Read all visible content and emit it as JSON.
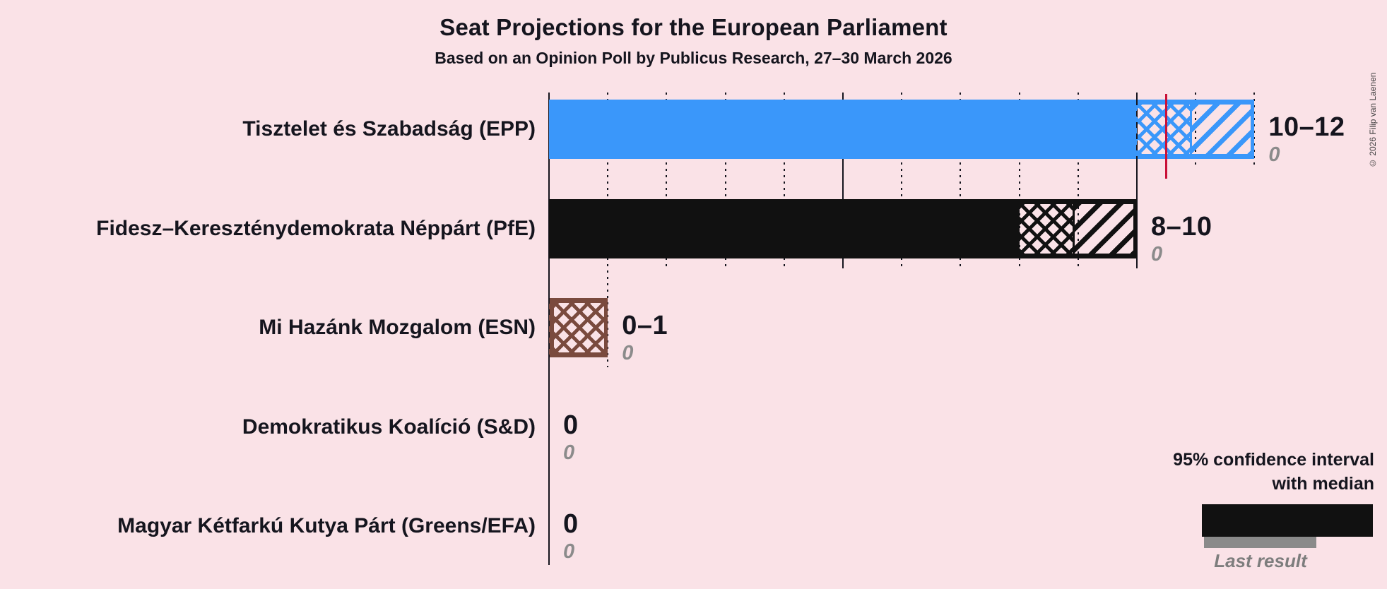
{
  "header": {
    "title": "Seat Projections for the European Parliament",
    "subtitle": "Based on an Opinion Poll by Publicus Research, 27–30 March 2026",
    "copyright": "© 2026 Filip van Laenen"
  },
  "legend": {
    "ci_line1": "95% confidence interval",
    "ci_line2": "with median",
    "last_result": "Last result"
  },
  "colors": {
    "background": "#fae2e7",
    "text": "#15151e",
    "median_line": "#c91038",
    "gray_label": "#8b8b8b",
    "last_result_bar": "#8a8a8a"
  },
  "chart_data": {
    "type": "bar",
    "title": "Seat Projections for the European Parliament",
    "subtitle": "Based on an Opinion Poll by Publicus Research, 27–30 March 2026",
    "unit": "seats",
    "x_axis": {
      "min": 0,
      "max": 12,
      "major_ticks": [
        0,
        5,
        10
      ],
      "minor_tick_step": 1,
      "gridlines": "dotted"
    },
    "legend_position": "bottom-right",
    "parties": [
      {
        "label": "Tisztelet és Szabadság (EPP)",
        "range_label": "10–12",
        "last_result_label": "0",
        "ci_low": 10,
        "ci_high": 12,
        "hatch_mid": 11,
        "median": 10.5,
        "median_line_shown": true,
        "last_result": 0,
        "color": "#3a97fa"
      },
      {
        "label": "Fidesz–Kereszténydemokrata Néppárt (PfE)",
        "range_label": "8–10",
        "last_result_label": "0",
        "ci_low": 8,
        "ci_high": 10,
        "hatch_mid": 9,
        "median": 9,
        "median_line_shown": false,
        "last_result": 0,
        "color": "#111111"
      },
      {
        "label": "Mi Hazánk Mozgalom (ESN)",
        "range_label": "0–1",
        "last_result_label": "0",
        "ci_low": 0,
        "ci_high": 1,
        "hatch_mid": 1,
        "median": 0,
        "median_line_shown": false,
        "last_result": 0,
        "color": "#7a4a3e"
      },
      {
        "label": "Demokratikus Koalíció (S&D)",
        "range_label": "0",
        "last_result_label": "0",
        "ci_low": 0,
        "ci_high": 0,
        "hatch_mid": 0,
        "median": 0,
        "median_line_shown": false,
        "last_result": 0,
        "color": "#15151e"
      },
      {
        "label": "Magyar Kétfarkú Kutya Párt (Greens/EFA)",
        "range_label": "0",
        "last_result_label": "0",
        "ci_low": 0,
        "ci_high": 0,
        "hatch_mid": 0,
        "median": 0,
        "median_line_shown": false,
        "last_result": 0,
        "color": "#15151e"
      }
    ]
  }
}
